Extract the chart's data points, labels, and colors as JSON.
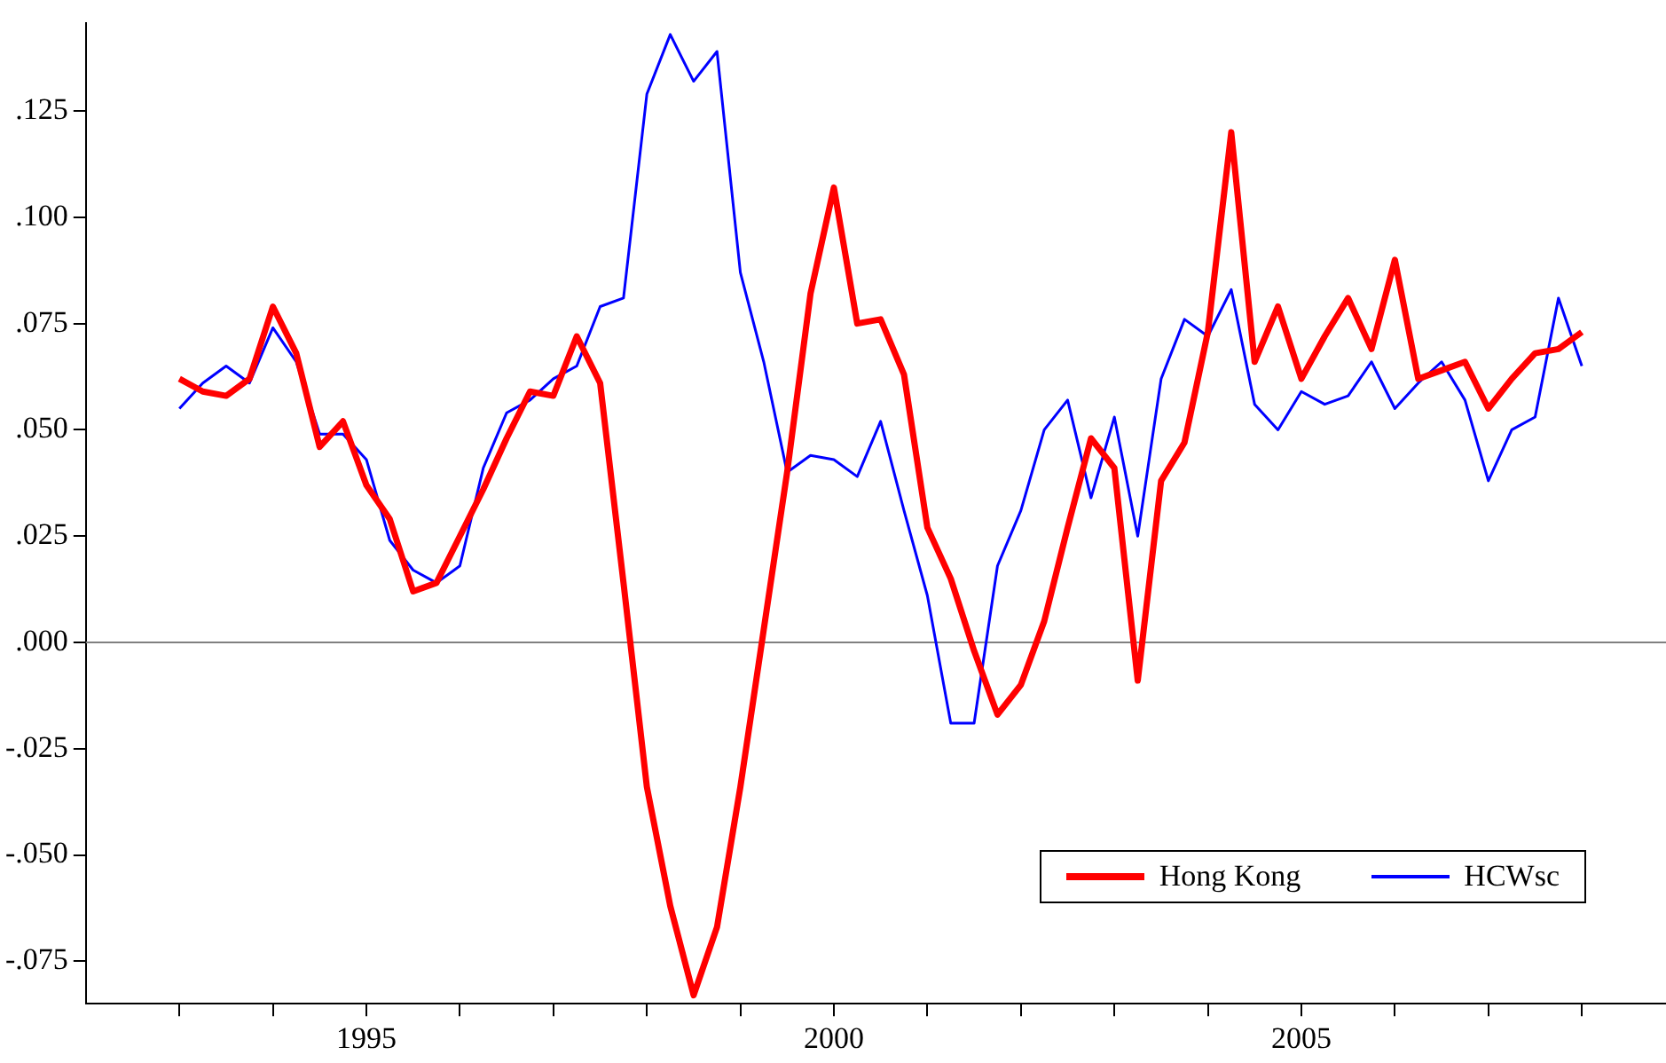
{
  "chart_data": {
    "type": "line",
    "x": [
      1993,
      1993.25,
      1993.5,
      1993.75,
      1994,
      1994.25,
      1994.5,
      1994.75,
      1995,
      1995.25,
      1995.5,
      1995.75,
      1996,
      1996.25,
      1996.5,
      1996.75,
      1997,
      1997.25,
      1997.5,
      1997.75,
      1998,
      1998.25,
      1998.5,
      1998.75,
      1999,
      1999.25,
      1999.5,
      1999.75,
      2000,
      2000.25,
      2000.5,
      2000.75,
      2001,
      2001.25,
      2001.5,
      2001.75,
      2002,
      2002.25,
      2002.5,
      2002.75,
      2003,
      2003.25,
      2003.5,
      2003.75,
      2004,
      2004.25,
      2004.5,
      2004.75,
      2005,
      2005.25,
      2005.5,
      2005.75,
      2006,
      2006.25,
      2006.5,
      2006.75,
      2007,
      2007.25,
      2007.5,
      2007.75,
      2008
    ],
    "series": [
      {
        "name": "Hong Kong",
        "color": "#ff0000",
        "values": [
          0.062,
          0.059,
          0.058,
          0.062,
          0.079,
          0.068,
          0.046,
          0.052,
          0.037,
          0.029,
          0.012,
          0.014,
          0.025,
          0.036,
          0.048,
          0.059,
          0.058,
          0.072,
          0.061,
          0.014,
          -0.034,
          -0.062,
          -0.083,
          -0.067,
          -0.034,
          0.003,
          0.04,
          0.082,
          0.107,
          0.075,
          0.076,
          0.063,
          0.027,
          0.015,
          -0.002,
          -0.017,
          -0.01,
          0.005,
          0.027,
          0.048,
          0.041,
          -0.009,
          0.038,
          0.047,
          0.073,
          0.12,
          0.066,
          0.079,
          0.062,
          0.072,
          0.081,
          0.069,
          0.09,
          0.062,
          0.064,
          0.066,
          0.055,
          0.062,
          0.068,
          0.069,
          0.073
        ]
      },
      {
        "name": "HCWsc",
        "color": "#0000ff",
        "values": [
          0.055,
          0.061,
          0.065,
          0.061,
          0.074,
          0.066,
          0.049,
          0.049,
          0.043,
          0.024,
          0.017,
          0.014,
          0.018,
          0.041,
          0.054,
          0.057,
          0.062,
          0.065,
          0.079,
          0.081,
          0.129,
          0.143,
          0.132,
          0.139,
          0.087,
          0.066,
          0.04,
          0.044,
          0.043,
          0.039,
          0.052,
          0.031,
          0.011,
          -0.019,
          -0.019,
          0.018,
          0.031,
          0.05,
          0.057,
          0.034,
          0.053,
          0.025,
          0.062,
          0.076,
          0.072,
          0.083,
          0.056,
          0.05,
          0.059,
          0.056,
          0.058,
          0.066,
          0.055,
          0.061,
          0.066,
          0.057,
          0.038,
          0.05,
          0.053,
          0.081,
          0.065
        ]
      }
    ],
    "xlim": [
      1992,
      2008.9
    ],
    "xticks": [
      {
        "value": 1993,
        "label": null
      },
      {
        "value": 1994,
        "label": null
      },
      1995,
      {
        "value": 1996,
        "label": null
      },
      {
        "value": 1997,
        "label": null
      },
      {
        "value": 1998,
        "label": null
      },
      {
        "value": 1999,
        "label": null
      },
      2000,
      {
        "value": 2001,
        "label": null
      },
      {
        "value": 2002,
        "label": null
      },
      {
        "value": 2003,
        "label": null
      },
      {
        "value": 2004,
        "label": null
      },
      2005,
      {
        "value": 2006,
        "label": null
      },
      {
        "value": 2007,
        "label": null
      },
      {
        "value": 2008,
        "label": null
      }
    ],
    "ylim": [
      -0.085,
      0.1456
    ],
    "yticks": [
      {
        "value": -0.075,
        "label": "-.075"
      },
      {
        "value": -0.05,
        "label": "-.050"
      },
      {
        "value": -0.025,
        "label": "-.025"
      },
      {
        "value": 0,
        "label": ".000"
      },
      {
        "value": 0.025,
        "label": ".025"
      },
      {
        "value": 0.05,
        "label": ".050"
      },
      {
        "value": 0.075,
        "label": ".075"
      },
      {
        "value": 0.1,
        "label": ".100"
      },
      {
        "value": 0.125,
        "label": ".125"
      }
    ],
    "ref_lines": [
      {
        "axis": "y",
        "value": 0,
        "color": "#808080"
      }
    ],
    "grid": false,
    "legend": "bottom right",
    "marker": "none"
  }
}
